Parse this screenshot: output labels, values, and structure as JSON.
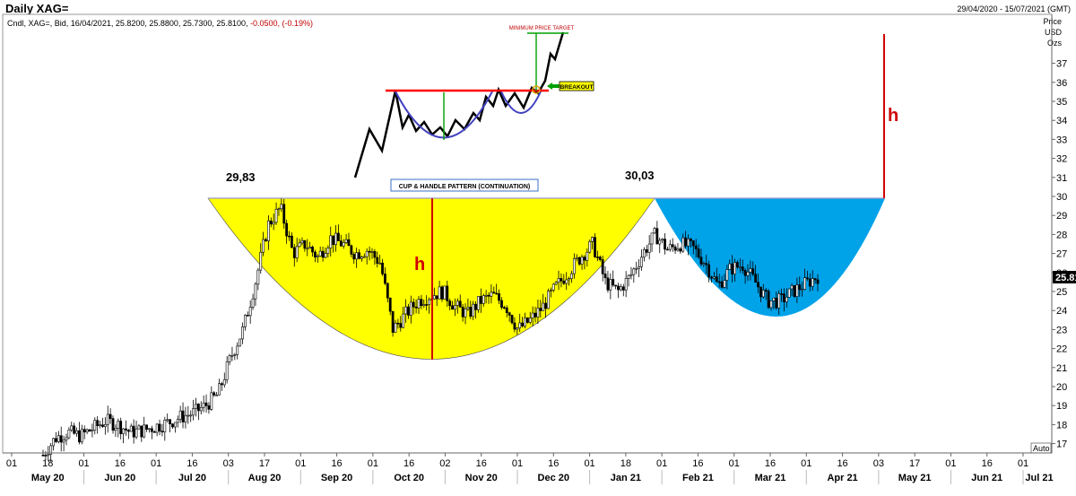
{
  "header": {
    "title": "Daily XAG=",
    "date_range": "29/04/2020 - 15/07/2021 (GMT)",
    "ohlc_prefix": "Cndl, XAG=, Bid, 16/04/2021, 25.8200, 25.8800, 25.7300, 25.8100,",
    "change": "-0.0500, (-0.19%)"
  },
  "axis": {
    "unit_price": "Price",
    "unit_usd": "USD",
    "unit_ozs": "Ozs",
    "auto_label": "Auto",
    "last_price": "25.8100"
  },
  "annotations": {
    "left_high": "29,83",
    "right_high": "30,03",
    "pattern_label": "CUP & HANDLE PATTERN (CONTINUATION)",
    "h_cup": "h",
    "h_target": "h",
    "inset_target": "MINIMUM PRICE TARGET",
    "inset_breakout": "BREAKOUT"
  },
  "colors": {
    "cup_fill": "#ffff00",
    "handle_fill": "#00a2e8",
    "h_red": "#d00000",
    "rim_line": "#9999cc",
    "inset_neck": "#ff0000",
    "inset_cup": "#4040c0",
    "inset_green": "#00a000"
  },
  "chart_data": {
    "type": "candlestick",
    "instrument": "XAG=",
    "ylim": [
      16.5,
      39
    ],
    "y_ticks": [
      17,
      18,
      19,
      20,
      21,
      22,
      23,
      24,
      25,
      26,
      27,
      28,
      29,
      30,
      31,
      32,
      33,
      34,
      35,
      36,
      37
    ],
    "x_day_ticks": [
      "01",
      "18",
      "01",
      "16",
      "01",
      "16",
      "03",
      "17",
      "01",
      "16",
      "01",
      "16",
      "02",
      "16",
      "01",
      "16",
      "01",
      "18",
      "01",
      "16",
      "01",
      "16",
      "01",
      "16",
      "03",
      "17",
      "01",
      "16",
      "01"
    ],
    "x_month_labels": [
      "May 20",
      "Jun 20",
      "Jul 20",
      "Aug 20",
      "Sep 20",
      "Oct 20",
      "Nov 20",
      "Dec 20",
      "Jan 21",
      "Feb 21",
      "Mar 21",
      "Apr 21",
      "May 21",
      "Jun 21",
      "Jul 21"
    ],
    "rim_level": 29.9,
    "cup_bottom": 21.45,
    "handle_bottom": 23.7,
    "left_high": 29.83,
    "right_high": 30.03,
    "last": 25.81,
    "projected_target": 38.8,
    "closes_sampled": [
      16.4,
      17.3,
      17.6,
      17.4,
      17.8,
      18.2,
      18.0,
      17.6,
      17.7,
      17.9,
      18.1,
      18.4,
      18.6,
      19.0,
      19.6,
      21.5,
      23.0,
      25.5,
      28.5,
      29.4,
      27.0,
      27.5,
      26.8,
      27.8,
      27.5,
      27.0,
      27.2,
      26.5,
      23.0,
      23.8,
      24.5,
      24.8,
      25.0,
      24.2,
      23.8,
      24.5,
      24.8,
      24.3,
      23.0,
      23.5,
      24.2,
      25.2,
      26.0,
      26.8,
      27.5,
      25.5,
      25.0,
      25.8,
      27.0,
      28.0,
      27.2,
      27.5,
      27.3,
      26.5,
      25.3,
      26.2,
      26.4,
      25.5,
      24.5,
      24.5,
      25.0,
      25.4,
      25.81
    ]
  }
}
